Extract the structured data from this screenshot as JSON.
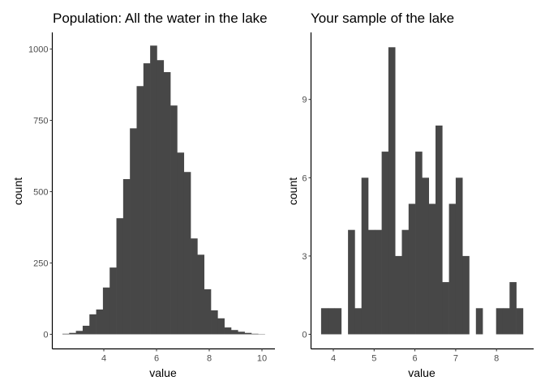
{
  "chart_data": [
    {
      "type": "bar",
      "title": "Population: All the water in the lake",
      "xlabel": "value",
      "ylabel": "count",
      "bar_color": "#474747",
      "bin_start": 2.43,
      "bin_width": 0.256,
      "values": [
        2,
        5,
        12,
        30,
        70,
        87,
        164,
        234,
        407,
        544,
        722,
        870,
        950,
        1012,
        961,
        919,
        802,
        637,
        569,
        336,
        279,
        158,
        84,
        56,
        24,
        15,
        9,
        5,
        2,
        1
      ],
      "xlim": [
        2.2,
        10.5
      ],
      "ylim": [
        0,
        1050
      ],
      "xticks": [
        "4",
        "6",
        "8",
        "10"
      ],
      "xtick_values": [
        4,
        6,
        8,
        10
      ],
      "yticks": [
        "0",
        "250",
        "500",
        "750",
        "1000"
      ],
      "ytick_values": [
        0,
        250,
        500,
        750,
        1000
      ],
      "grid": false
    },
    {
      "type": "bar",
      "title": "Your sample of the lake",
      "xlabel": "value",
      "ylabel": "count",
      "bar_color": "#474747",
      "bin_start": 3.7,
      "bin_width": 0.165,
      "values": [
        1,
        1,
        1,
        0,
        4,
        1,
        6,
        4,
        4,
        7,
        11,
        3,
        4,
        5,
        7,
        6,
        5,
        8,
        2,
        5,
        6,
        3,
        0,
        1,
        0,
        0,
        1,
        1,
        2,
        1
      ],
      "xlim": [
        3.45,
        8.9
      ],
      "ylim": [
        0,
        11.5
      ],
      "xticks": [
        "4",
        "5",
        "6",
        "7",
        "8"
      ],
      "xtick_values": [
        4,
        5,
        6,
        7,
        8
      ],
      "yticks": [
        "0",
        "3",
        "6",
        "9"
      ],
      "ytick_values": [
        0,
        3,
        6,
        9
      ],
      "grid": false
    }
  ]
}
